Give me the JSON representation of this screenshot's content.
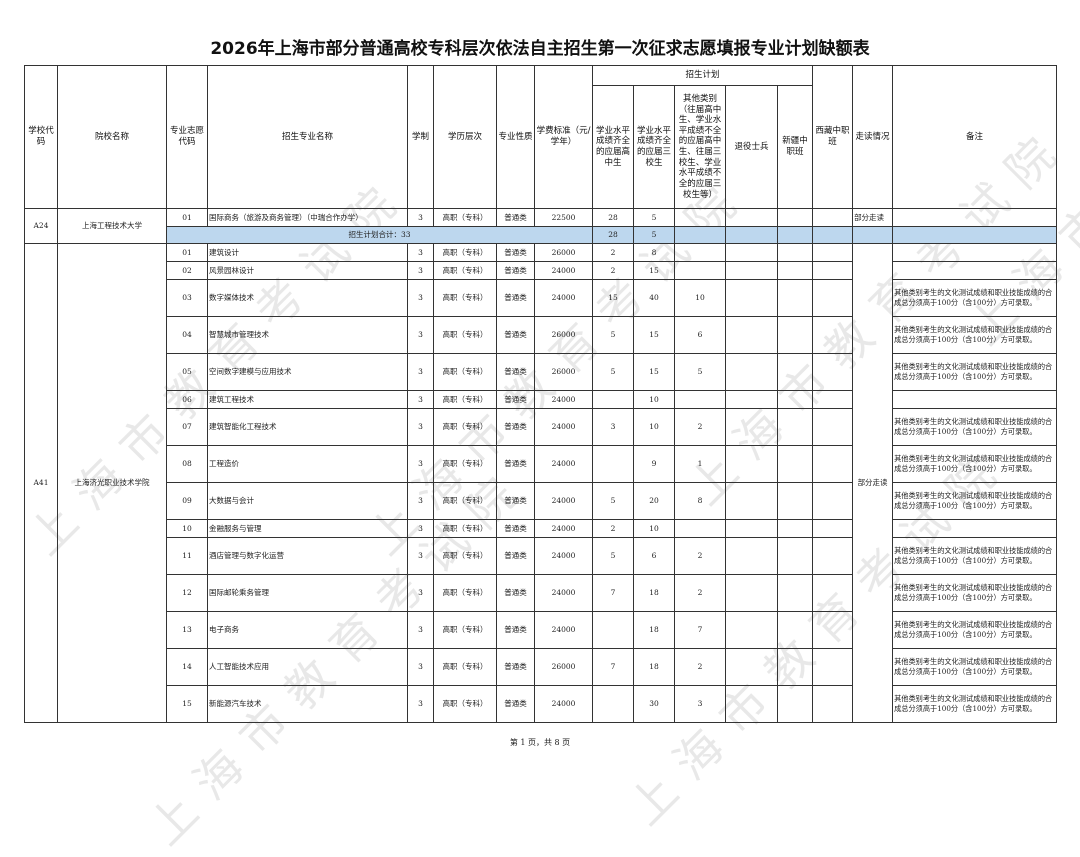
{
  "title": "2026年上海市部分普通高校专科层次依法自主招生第一次征求志愿填报专业计划缺额表",
  "headers": {
    "school_code": "学校代码",
    "school_name": "院校名称",
    "major_code": "专业志愿代码",
    "major_name": "招生专业名称",
    "duration": "学制",
    "level": "学历层次",
    "nature": "专业性质",
    "fee": "学费标准（元/ 学年）",
    "plan": "招生计划",
    "p1": "学业水平成绩齐全的应届高中生",
    "p2": "学业水平成绩齐全的应届三校生",
    "p3": "其他类别（往届高中生、学业水平成绩不全的应届高中生、往届三校生、学业水平成绩不全的应届三校生等）",
    "veteran": "退役士兵",
    "xinjiang": "新疆中职班",
    "xizang": "西藏中职班",
    "commute": "走读情况",
    "remark": "备注"
  },
  "schools": [
    {
      "code": "A24",
      "name": "上海工程技术大学",
      "commute": "部分走读",
      "rows": [
        {
          "code": "01",
          "major": "国际商务（旅游及商务管理）（中瑞合作办学）",
          "duration": "3",
          "level": "高职（专科）",
          "nature": "普通类",
          "fee": "22500",
          "p1": "28",
          "p2": "5",
          "p3": "",
          "veteran": "",
          "xj": "",
          "xz": "",
          "remark": ""
        }
      ],
      "total": {
        "label": "招生计划合计：33",
        "p1": "28",
        "p2": "5"
      }
    },
    {
      "code": "A41",
      "name": "上海济光职业技术学院",
      "commute": "部分走读",
      "rows": [
        {
          "code": "01",
          "major": "建筑设计",
          "duration": "3",
          "level": "高职（专科）",
          "nature": "普通类",
          "fee": "26000",
          "p1": "2",
          "p2": "8",
          "p3": "",
          "veteran": "",
          "xj": "",
          "xz": "",
          "remark": ""
        },
        {
          "code": "02",
          "major": "风景园林设计",
          "duration": "3",
          "level": "高职（专科）",
          "nature": "普通类",
          "fee": "24000",
          "p1": "2",
          "p2": "15",
          "p3": "",
          "veteran": "",
          "xj": "",
          "xz": "",
          "remark": ""
        },
        {
          "code": "03",
          "major": "数字媒体技术",
          "duration": "3",
          "level": "高职（专科）",
          "nature": "普通类",
          "fee": "24000",
          "p1": "15",
          "p2": "40",
          "p3": "10",
          "veteran": "",
          "xj": "",
          "xz": "",
          "remark": "其他类别考生的文化测试成绩和职业技能成绩的合成总分须高于100分（含100分）方可录取。"
        },
        {
          "code": "04",
          "major": "智慧城市管理技术",
          "duration": "3",
          "level": "高职（专科）",
          "nature": "普通类",
          "fee": "26000",
          "p1": "5",
          "p2": "15",
          "p3": "6",
          "veteran": "",
          "xj": "",
          "xz": "",
          "remark": "其他类别考生的文化测试成绩和职业技能成绩的合成总分须高于100分（含100分）方可录取。"
        },
        {
          "code": "05",
          "major": "空间数字建模与应用技术",
          "duration": "3",
          "level": "高职（专科）",
          "nature": "普通类",
          "fee": "26000",
          "p1": "5",
          "p2": "15",
          "p3": "5",
          "veteran": "",
          "xj": "",
          "xz": "",
          "remark": "其他类别考生的文化测试成绩和职业技能成绩的合成总分须高于100分（含100分）方可录取。"
        },
        {
          "code": "06",
          "major": "建筑工程技术",
          "duration": "3",
          "level": "高职（专科）",
          "nature": "普通类",
          "fee": "24000",
          "p1": "",
          "p2": "10",
          "p3": "",
          "veteran": "",
          "xj": "",
          "xz": "",
          "remark": ""
        },
        {
          "code": "07",
          "major": "建筑智能化工程技术",
          "duration": "3",
          "level": "高职（专科）",
          "nature": "普通类",
          "fee": "24000",
          "p1": "3",
          "p2": "10",
          "p3": "2",
          "veteran": "",
          "xj": "",
          "xz": "",
          "remark": "其他类别考生的文化测试成绩和职业技能成绩的合成总分须高于100分（含100分）方可录取。"
        },
        {
          "code": "08",
          "major": "工程造价",
          "duration": "3",
          "level": "高职（专科）",
          "nature": "普通类",
          "fee": "24000",
          "p1": "",
          "p2": "9",
          "p3": "1",
          "veteran": "",
          "xj": "",
          "xz": "",
          "remark": "其他类别考生的文化测试成绩和职业技能成绩的合成总分须高于100分（含100分）方可录取。"
        },
        {
          "code": "09",
          "major": "大数据与会计",
          "duration": "3",
          "level": "高职（专科）",
          "nature": "普通类",
          "fee": "24000",
          "p1": "5",
          "p2": "20",
          "p3": "8",
          "veteran": "",
          "xj": "",
          "xz": "",
          "remark": "其他类别考生的文化测试成绩和职业技能成绩的合成总分须高于100分（含100分）方可录取。"
        },
        {
          "code": "10",
          "major": "金融服务与管理",
          "duration": "3",
          "level": "高职（专科）",
          "nature": "普通类",
          "fee": "24000",
          "p1": "2",
          "p2": "10",
          "p3": "",
          "veteran": "",
          "xj": "",
          "xz": "",
          "remark": ""
        },
        {
          "code": "11",
          "major": "酒店管理与数字化运营",
          "duration": "3",
          "level": "高职（专科）",
          "nature": "普通类",
          "fee": "24000",
          "p1": "5",
          "p2": "6",
          "p3": "2",
          "veteran": "",
          "xj": "",
          "xz": "",
          "remark": "其他类别考生的文化测试成绩和职业技能成绩的合成总分须高于100分（含100分）方可录取。"
        },
        {
          "code": "12",
          "major": "国际邮轮乘务管理",
          "duration": "3",
          "level": "高职（专科）",
          "nature": "普通类",
          "fee": "24000",
          "p1": "7",
          "p2": "18",
          "p3": "2",
          "veteran": "",
          "xj": "",
          "xz": "",
          "remark": "其他类别考生的文化测试成绩和职业技能成绩的合成总分须高于100分（含100分）方可录取。"
        },
        {
          "code": "13",
          "major": "电子商务",
          "duration": "3",
          "level": "高职（专科）",
          "nature": "普通类",
          "fee": "24000",
          "p1": "",
          "p2": "18",
          "p3": "7",
          "veteran": "",
          "xj": "",
          "xz": "",
          "remark": "其他类别考生的文化测试成绩和职业技能成绩的合成总分须高于100分（含100分）方可录取。"
        },
        {
          "code": "14",
          "major": "人工智能技术应用",
          "duration": "3",
          "level": "高职（专科）",
          "nature": "普通类",
          "fee": "26000",
          "p1": "7",
          "p2": "18",
          "p3": "2",
          "veteran": "",
          "xj": "",
          "xz": "",
          "remark": "其他类别考生的文化测试成绩和职业技能成绩的合成总分须高于100分（含100分）方可录取。"
        },
        {
          "code": "15",
          "major": "新能源汽车技术",
          "duration": "3",
          "level": "高职（专科）",
          "nature": "普通类",
          "fee": "24000",
          "p1": "",
          "p2": "30",
          "p3": "3",
          "veteran": "",
          "xj": "",
          "xz": "",
          "remark": "其他类别考生的文化测试成绩和职业技能成绩的合成总分须高于100分（含100分）方可录取。"
        }
      ]
    }
  ],
  "watermark": "上海市教育考试院",
  "footer": "第 1 页，共 8 页",
  "colors": {
    "total_row": "#bdd7ee"
  }
}
